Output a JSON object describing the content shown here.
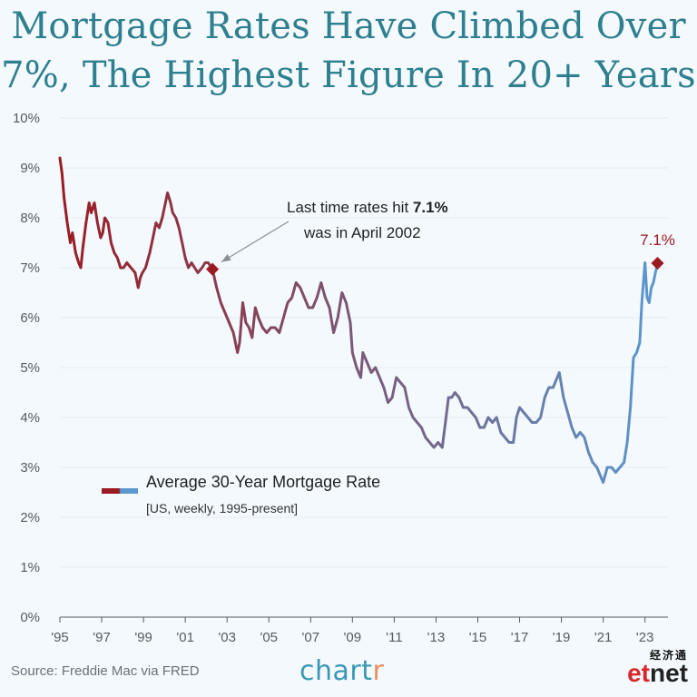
{
  "title_line1": "Mortgage Rates Have Climbed Over",
  "title_line2": "7%, The Highest Figure In 20+ Years",
  "source": "Source: Freddie Mac via FRED",
  "brand": {
    "main": "chart",
    "accent": "r"
  },
  "watermark": {
    "cn": "经济通",
    "en_main": "et",
    "en_accent": "net"
  },
  "colors": {
    "start": "#9b1b22",
    "end": "#5b98cf",
    "end_marker": "#9b1b22",
    "gridline": "#e4ebf1"
  },
  "chart_data": {
    "type": "line",
    "title": "Mortgage Rates Have Climbed Over 7%, The Highest Figure In 20+ Years",
    "xlim": [
      1995,
      2024.1
    ],
    "ylim": [
      0,
      10
    ],
    "y_ticks": [
      0,
      1,
      2,
      3,
      4,
      5,
      6,
      7,
      8,
      9,
      10
    ],
    "y_tick_labels": [
      "0%",
      "1%",
      "2%",
      "3%",
      "4%",
      "5%",
      "6%",
      "7%",
      "8%",
      "9%",
      "10%"
    ],
    "x_ticks": [
      1995,
      1997,
      1999,
      2001,
      2003,
      2005,
      2007,
      2009,
      2011,
      2013,
      2015,
      2017,
      2019,
      2021,
      2023
    ],
    "x_tick_labels": [
      "'95",
      "'97",
      "'99",
      "'01",
      "'03",
      "'05",
      "'07",
      "'09",
      "'11",
      "'13",
      "'15",
      "'17",
      "'19",
      "'21",
      "'23"
    ],
    "legend": {
      "title": "Average 30-Year Mortgage Rate",
      "subtitle": "[US, weekly, 1995-present]",
      "placement": "bottom-left"
    },
    "annotation": {
      "line1_prefix": "Last time rates hit ",
      "line1_bold": "7.1%",
      "line2": "was in April 2002",
      "point": [
        2002.3,
        6.97
      ]
    },
    "end_label": "7.1%",
    "end_point": [
      2023.6,
      7.09
    ],
    "series": [
      {
        "x": [
          1995.0,
          1995.1,
          1995.2,
          1995.35,
          1995.5,
          1995.6,
          1995.75,
          1995.9,
          1996.0,
          1996.1,
          1996.25,
          1996.4,
          1996.5,
          1996.65,
          1996.8,
          1996.95,
          1997.05,
          1997.15,
          1997.3,
          1997.45,
          1997.6,
          1997.75,
          1997.9,
          1998.05,
          1998.2,
          1998.4,
          1998.6,
          1998.75,
          1998.85,
          1998.95,
          1999.1,
          1999.3,
          1999.45,
          1999.6,
          1999.75,
          1999.9,
          2000.05,
          2000.15,
          2000.3,
          2000.4,
          2000.55,
          2000.7,
          2000.85,
          2001.0,
          2001.15,
          2001.3,
          2001.45,
          2001.6,
          2001.8,
          2001.95,
          2002.1,
          2002.3,
          2002.5,
          2002.7,
          2002.9,
          2003.1,
          2003.3,
          2003.5,
          2003.6,
          2003.75,
          2003.9,
          2004.05,
          2004.2,
          2004.35,
          2004.5,
          2004.7,
          2004.9,
          2005.1,
          2005.3,
          2005.5,
          2005.7,
          2005.9,
          2006.1,
          2006.3,
          2006.5,
          2006.7,
          2006.9,
          2007.1,
          2007.3,
          2007.5,
          2007.7,
          2007.9,
          2008.1,
          2008.3,
          2008.5,
          2008.7,
          2008.9,
          2009.0,
          2009.2,
          2009.4,
          2009.5,
          2009.7,
          2009.9,
          2010.1,
          2010.3,
          2010.5,
          2010.7,
          2010.9,
          2011.1,
          2011.3,
          2011.5,
          2011.7,
          2011.9,
          2012.1,
          2012.3,
          2012.5,
          2012.7,
          2012.9,
          2013.1,
          2013.3,
          2013.45,
          2013.6,
          2013.75,
          2013.9,
          2014.1,
          2014.3,
          2014.5,
          2014.7,
          2014.9,
          2015.1,
          2015.3,
          2015.5,
          2015.7,
          2015.9,
          2016.1,
          2016.3,
          2016.5,
          2016.7,
          2016.85,
          2017.0,
          2017.2,
          2017.4,
          2017.6,
          2017.8,
          2018.0,
          2018.2,
          2018.4,
          2018.6,
          2018.8,
          2018.9,
          2019.1,
          2019.3,
          2019.5,
          2019.7,
          2019.9,
          2020.1,
          2020.3,
          2020.5,
          2020.7,
          2020.9,
          2021.0,
          2021.2,
          2021.4,
          2021.6,
          2021.8,
          2022.0,
          2022.15,
          2022.3,
          2022.45,
          2022.6,
          2022.75,
          2022.85,
          2023.0,
          2023.1,
          2023.2,
          2023.3,
          2023.4,
          2023.5,
          2023.6
        ],
        "values": [
          9.2,
          8.9,
          8.4,
          7.9,
          7.5,
          7.7,
          7.3,
          7.1,
          7.0,
          7.4,
          7.9,
          8.3,
          8.1,
          8.3,
          7.9,
          7.6,
          7.7,
          8.0,
          7.9,
          7.5,
          7.3,
          7.2,
          7.0,
          7.0,
          7.1,
          7.0,
          6.9,
          6.6,
          6.8,
          6.9,
          7.0,
          7.3,
          7.6,
          7.9,
          7.8,
          8.0,
          8.3,
          8.5,
          8.3,
          8.1,
          8.0,
          7.8,
          7.5,
          7.2,
          7.0,
          7.1,
          7.0,
          6.9,
          7.0,
          7.1,
          7.1,
          6.97,
          6.6,
          6.3,
          6.1,
          5.9,
          5.7,
          5.3,
          5.5,
          6.3,
          5.9,
          5.8,
          5.6,
          6.2,
          6.0,
          5.8,
          5.7,
          5.8,
          5.8,
          5.7,
          6.0,
          6.3,
          6.4,
          6.7,
          6.6,
          6.4,
          6.2,
          6.2,
          6.4,
          6.7,
          6.4,
          6.2,
          5.7,
          6.0,
          6.5,
          6.3,
          5.9,
          5.3,
          5.0,
          4.8,
          5.3,
          5.1,
          4.9,
          5.0,
          4.8,
          4.6,
          4.3,
          4.4,
          4.8,
          4.7,
          4.6,
          4.2,
          4.0,
          3.9,
          3.8,
          3.6,
          3.5,
          3.4,
          3.5,
          3.4,
          3.9,
          4.4,
          4.4,
          4.5,
          4.4,
          4.2,
          4.2,
          4.1,
          4.0,
          3.8,
          3.8,
          4.0,
          3.9,
          4.0,
          3.7,
          3.6,
          3.5,
          3.5,
          4.0,
          4.2,
          4.1,
          4.0,
          3.9,
          3.9,
          4.0,
          4.4,
          4.6,
          4.6,
          4.8,
          4.9,
          4.4,
          4.1,
          3.8,
          3.6,
          3.7,
          3.6,
          3.3,
          3.1,
          3.0,
          2.8,
          2.7,
          3.0,
          3.0,
          2.9,
          3.0,
          3.1,
          3.5,
          4.2,
          5.2,
          5.3,
          5.5,
          6.3,
          7.1,
          6.4,
          6.3,
          6.6,
          6.7,
          6.9,
          7.09
        ]
      }
    ]
  }
}
